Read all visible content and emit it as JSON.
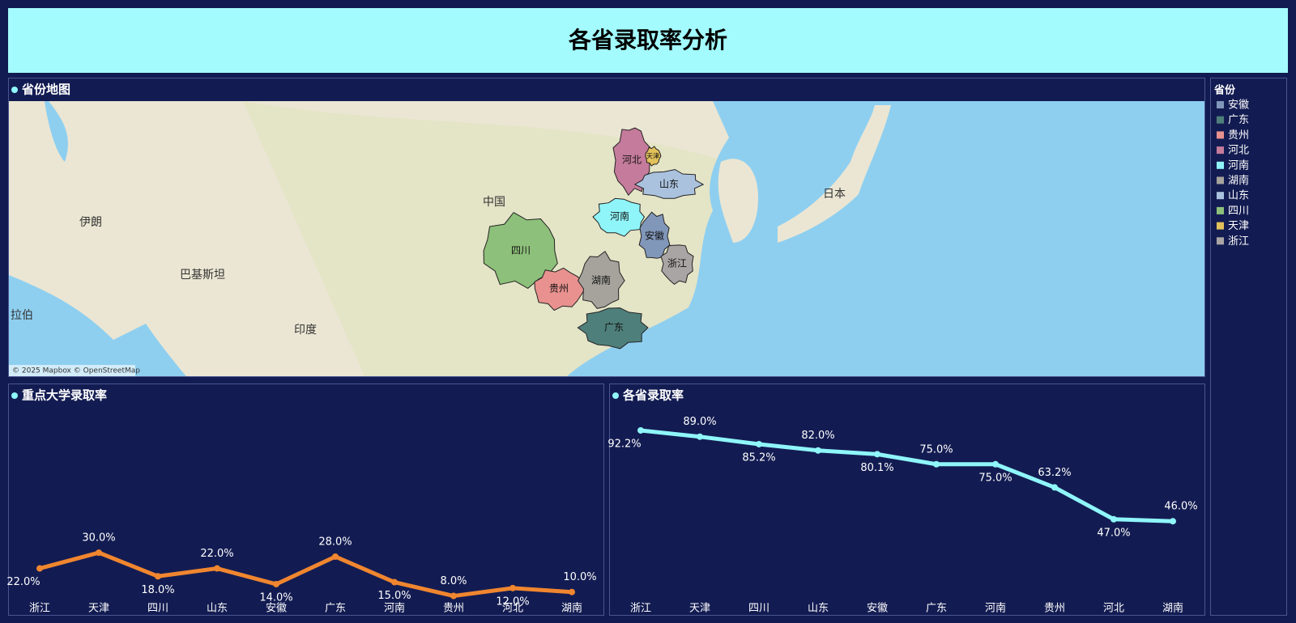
{
  "title": "各省录取率分析",
  "map": {
    "title": "省份地图",
    "provinces": [
      "河北",
      "天津",
      "山东",
      "河南",
      "四川",
      "安徽",
      "浙江",
      "贵州",
      "湖南",
      "广东"
    ],
    "places": [
      "中国",
      "日本",
      "印度",
      "伊朗",
      "巴基斯坦",
      "拉伯"
    ],
    "attribution": "© 2025 Mapbox © OpenStreetMap"
  },
  "legend": {
    "title": "省份",
    "items": [
      {
        "name": "安徽",
        "color": "#8197ba"
      },
      {
        "name": "广东",
        "color": "#4f7f7b"
      },
      {
        "name": "贵州",
        "color": "#e8918e"
      },
      {
        "name": "河北",
        "color": "#c57b9b"
      },
      {
        "name": "河南",
        "color": "#90f5f9"
      },
      {
        "name": "湖南",
        "color": "#a6a39d"
      },
      {
        "name": "山东",
        "color": "#aac2de"
      },
      {
        "name": "四川",
        "color": "#8dc07a"
      },
      {
        "name": "天津",
        "color": "#e2c15a"
      },
      {
        "name": "浙江",
        "color": "#a9a5a5"
      }
    ]
  },
  "chart_data": [
    {
      "type": "line",
      "title": "重点大学录取率",
      "categories": [
        "浙江",
        "天津",
        "四川",
        "山东",
        "安徽",
        "广东",
        "河南",
        "贵州",
        "河北",
        "湖南"
      ],
      "values": [
        22,
        30,
        18,
        22,
        14,
        28,
        15,
        8,
        12,
        10
      ],
      "value_labels": [
        "22.0%",
        "30.0%",
        "18.0%",
        "22.0%",
        "14.0%",
        "28.0%",
        "15.0%",
        "8.0%",
        "12.0%",
        "10.0%"
      ],
      "color": "#f0862f",
      "ylim": [
        0,
        100
      ]
    },
    {
      "type": "line",
      "title": "各省录取率",
      "categories": [
        "浙江",
        "天津",
        "四川",
        "山东",
        "安徽",
        "广东",
        "河南",
        "贵州",
        "河北",
        "湖南"
      ],
      "values": [
        92.2,
        89,
        85.2,
        82,
        80.1,
        75,
        75,
        63.2,
        47,
        46
      ],
      "value_labels": [
        "92.2%",
        "89.0%",
        "85.2%",
        "82.0%",
        "80.1%",
        "75.0%",
        "75.0%",
        "63.2%",
        "47.0%",
        "46.0%"
      ],
      "color": "#8ff6fa",
      "ylim": [
        0,
        100
      ]
    }
  ]
}
